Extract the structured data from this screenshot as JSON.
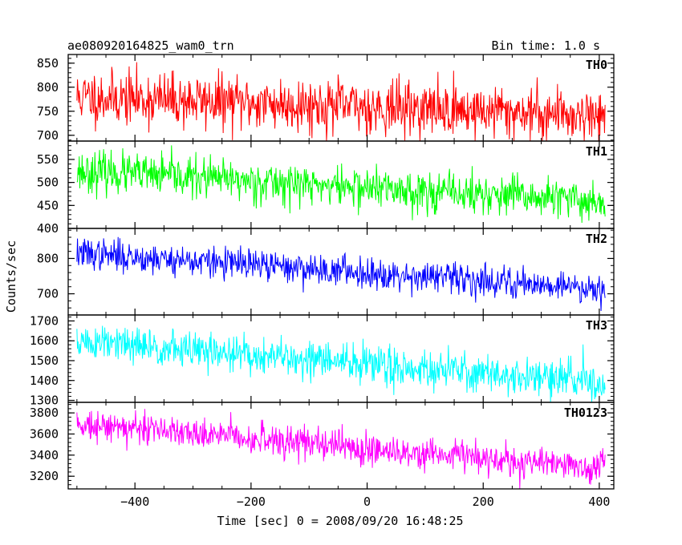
{
  "header": {
    "left_title": "ae080920164825_wam0_trn",
    "right_title": "Bin time: 1.0 s"
  },
  "axes": {
    "ylabel": "Counts/sec",
    "xlabel": "Time [sec] 0 = 2008/09/20 16:48:25"
  },
  "chart_data": {
    "type": "line",
    "x_range": [
      -515,
      425
    ],
    "x_ticks": [
      -400,
      -200,
      0,
      200,
      400
    ],
    "x_tick_labels": [
      "−400",
      "−200",
      "0",
      "200",
      "400"
    ],
    "x_start": -500,
    "x_end": 410,
    "x_step": 1,
    "grid": false,
    "panels": [
      {
        "label": "TH0",
        "color": "#ff0000",
        "ylim": [
          688,
          868
        ],
        "yticks": [
          700,
          750,
          800,
          850
        ],
        "trend_start": 780,
        "trend_end": 742,
        "noise_sd": 28,
        "clip_max": 868,
        "clip_min": 688,
        "seed": 11
      },
      {
        "label": "TH1",
        "color": "#00ff00",
        "ylim": [
          400,
          590
        ],
        "yticks": [
          400,
          450,
          500,
          550
        ],
        "trend_start": 525,
        "trend_end": 458,
        "noise_sd": 22,
        "clip_max": 590,
        "clip_min": 400,
        "seed": 23
      },
      {
        "label": "TH2",
        "color": "#0000ff",
        "ylim": [
          640,
          885
        ],
        "yticks": [
          700,
          800
        ],
        "trend_start": 815,
        "trend_end": 715,
        "noise_sd": 22,
        "clip_max": 885,
        "clip_min": 640,
        "seed": 37
      },
      {
        "label": "TH3",
        "color": "#00ffff",
        "ylim": [
          1290,
          1730
        ],
        "yticks": [
          1300,
          1400,
          1500,
          1600,
          1700
        ],
        "trend_start": 1595,
        "trend_end": 1390,
        "noise_sd": 48,
        "clip_max": 1730,
        "clip_min": 1290,
        "seed": 51
      },
      {
        "label": "TH0123",
        "color": "#ff00ff",
        "ylim": [
          3080,
          3900
        ],
        "yticks": [
          3200,
          3400,
          3600,
          3800
        ],
        "trend_start": 3705,
        "trend_end": 3270,
        "noise_sd": 75,
        "clip_max": 3900,
        "clip_min": 3080,
        "seed": 73
      }
    ]
  }
}
